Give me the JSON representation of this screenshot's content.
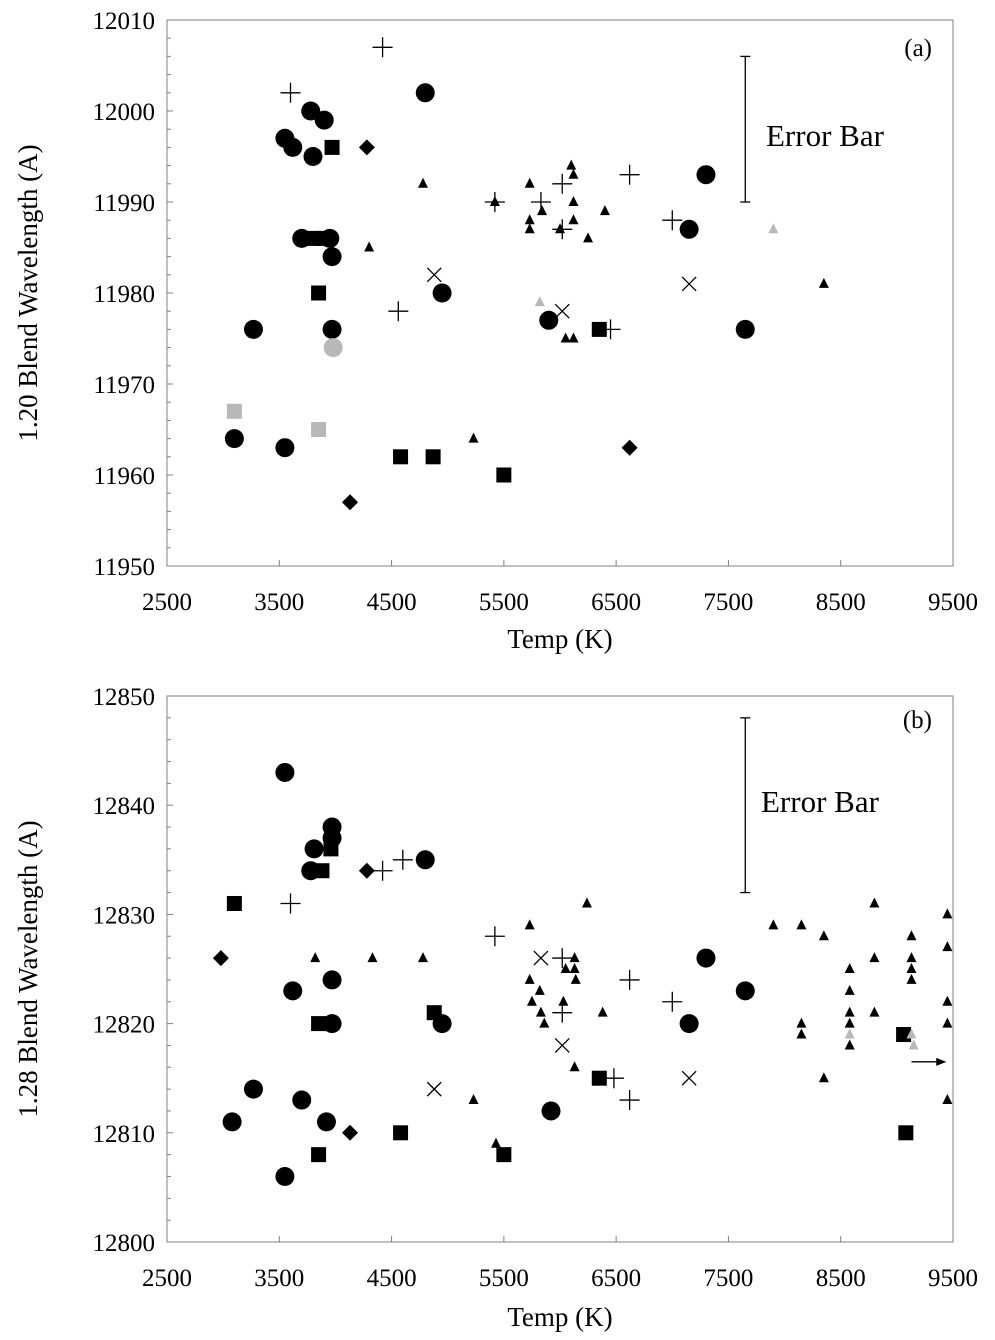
{
  "chart_data": [
    {
      "type": "scatter",
      "panel_label": "(a)",
      "xlabel": "Temp (K)",
      "ylabel": "1.20 Blend Wavelength (A)",
      "xlim": [
        2500,
        9500
      ],
      "ylim": [
        11950,
        12010
      ],
      "xticks": [
        2500,
        3500,
        4500,
        5500,
        6500,
        7500,
        8500,
        9500
      ],
      "yticks": [
        11950,
        11960,
        11970,
        11980,
        11990,
        12000,
        12010
      ],
      "grid": false,
      "error_bar": {
        "label": "Error Bar",
        "x": 7650,
        "y_low": 11990,
        "y_high": 12006
      },
      "series": [
        {
          "marker": "circle",
          "color": "#000000",
          "points": [
            [
              3100,
              11964
            ],
            [
              3270,
              11976
            ],
            [
              3550,
              11963
            ],
            [
              3550,
              11997
            ],
            [
              3620,
              11996
            ],
            [
              3700,
              11986
            ],
            [
              3780,
              12000
            ],
            [
              3800,
              11995
            ],
            [
              3900,
              11999
            ],
            [
              3950,
              11986
            ],
            [
              3970,
              11984
            ],
            [
              3970,
              11976
            ],
            [
              4800,
              12002
            ],
            [
              4950,
              11980
            ],
            [
              5900,
              11977
            ],
            [
              7150,
              11987
            ],
            [
              7300,
              11993
            ],
            [
              7650,
              11976
            ]
          ]
        },
        {
          "marker": "circle",
          "color": "#b8b8b8",
          "points": [
            [
              3980,
              11974
            ]
          ]
        },
        {
          "marker": "square",
          "color": "#000000",
          "points": [
            [
              3800,
              11986
            ],
            [
              3850,
              11980
            ],
            [
              3880,
              11986
            ],
            [
              3970,
              11996
            ],
            [
              4580,
              11962
            ],
            [
              4870,
              11962
            ],
            [
              5500,
              11960
            ],
            [
              6350,
              11976
            ]
          ]
        },
        {
          "marker": "square",
          "color": "#b8b8b8",
          "points": [
            [
              3100,
              11967
            ],
            [
              3850,
              11965
            ]
          ]
        },
        {
          "marker": "diamond",
          "color": "#000000",
          "points": [
            [
              4130,
              11957
            ],
            [
              4280,
              11996
            ],
            [
              6620,
              11963
            ]
          ]
        },
        {
          "marker": "triangle",
          "color": "#000000",
          "points": [
            [
              4300,
              11985
            ],
            [
              4780,
              11992
            ],
            [
              5230,
              11964
            ],
            [
              5420,
              11990
            ],
            [
              5730,
              11992
            ],
            [
              5730,
              11988
            ],
            [
              5730,
              11987
            ],
            [
              5840,
              11989
            ],
            [
              6000,
              11987
            ],
            [
              6050,
              11975
            ],
            [
              6100,
              11994
            ],
            [
              6120,
              11993
            ],
            [
              6120,
              11990
            ],
            [
              6120,
              11988
            ],
            [
              6120,
              11975
            ],
            [
              6250,
              11986
            ],
            [
              6400,
              11989
            ],
            [
              8350,
              11981
            ]
          ]
        },
        {
          "marker": "triangle",
          "color": "#b8b8b8",
          "points": [
            [
              5820,
              11979
            ],
            [
              7900,
              11987
            ]
          ]
        },
        {
          "marker": "plus",
          "color": "#000000",
          "points": [
            [
              3600,
              12002
            ],
            [
              4420,
              12007
            ],
            [
              4560,
              11978
            ],
            [
              5420,
              11990
            ],
            [
              5830,
              11990
            ],
            [
              6020,
              11992
            ],
            [
              6020,
              11987
            ],
            [
              6450,
              11976
            ],
            [
              6620,
              11993
            ],
            [
              7000,
              11988
            ]
          ]
        },
        {
          "marker": "cross",
          "color": "#000000",
          "points": [
            [
              4880,
              11982
            ],
            [
              6020,
              11978
            ],
            [
              7150,
              11981
            ]
          ]
        }
      ]
    },
    {
      "type": "scatter",
      "panel_label": "(b)",
      "xlabel": "Temp (K)",
      "ylabel": "1.28 Blend Wavelength (A)",
      "xlim": [
        2500,
        9500
      ],
      "ylim": [
        12800,
        12850
      ],
      "xticks": [
        2500,
        3500,
        4500,
        5500,
        6500,
        7500,
        8500,
        9500
      ],
      "yticks": [
        12800,
        12810,
        12820,
        12830,
        12840,
        12850
      ],
      "grid": false,
      "error_bar": {
        "label": "Error Bar",
        "x": 7650,
        "y_low": 12832,
        "y_high": 12848
      },
      "arrow": {
        "x_from": 9130,
        "x_to": 9440,
        "y": 12816.5
      },
      "series": [
        {
          "marker": "circle",
          "color": "#000000",
          "points": [
            [
              3080,
              12811
            ],
            [
              3270,
              12814
            ],
            [
              3550,
              12843
            ],
            [
              3550,
              12806
            ],
            [
              3620,
              12823
            ],
            [
              3700,
              12813
            ],
            [
              3780,
              12834
            ],
            [
              3810,
              12836
            ],
            [
              3920,
              12811
            ],
            [
              3970,
              12838
            ],
            [
              3970,
              12837
            ],
            [
              3970,
              12824
            ],
            [
              3970,
              12820
            ],
            [
              4800,
              12835
            ],
            [
              4950,
              12820
            ],
            [
              5920,
              12812
            ],
            [
              7150,
              12820
            ],
            [
              7300,
              12826
            ],
            [
              7650,
              12823
            ]
          ]
        },
        {
          "marker": "square",
          "color": "#000000",
          "points": [
            [
              3100,
              12831
            ],
            [
              3850,
              12820
            ],
            [
              3850,
              12808
            ],
            [
              3880,
              12834
            ],
            [
              3960,
              12836
            ],
            [
              4580,
              12810
            ],
            [
              4880,
              12821
            ],
            [
              5500,
              12808
            ],
            [
              6350,
              12815
            ],
            [
              9060,
              12819
            ],
            [
              9080,
              12810
            ]
          ]
        },
        {
          "marker": "diamond",
          "color": "#000000",
          "points": [
            [
              2980,
              12826
            ],
            [
              4130,
              12810
            ],
            [
              4280,
              12834
            ]
          ]
        },
        {
          "marker": "triangle",
          "color": "#000000",
          "points": [
            [
              3820,
              12826
            ],
            [
              4330,
              12826
            ],
            [
              4780,
              12826
            ],
            [
              5230,
              12813
            ],
            [
              5430,
              12809
            ],
            [
              5730,
              12829
            ],
            [
              5730,
              12824
            ],
            [
              5750,
              12822
            ],
            [
              5820,
              12823
            ],
            [
              5830,
              12821
            ],
            [
              5860,
              12820
            ],
            [
              6030,
              12822
            ],
            [
              6050,
              12825
            ],
            [
              6130,
              12826
            ],
            [
              6130,
              12825
            ],
            [
              6140,
              12824
            ],
            [
              6130,
              12816
            ],
            [
              6240,
              12831
            ],
            [
              6380,
              12821
            ],
            [
              7900,
              12829
            ],
            [
              8150,
              12829
            ],
            [
              8150,
              12820
            ],
            [
              8150,
              12819
            ],
            [
              8350,
              12828
            ],
            [
              8350,
              12815
            ],
            [
              8580,
              12825
            ],
            [
              8580,
              12823
            ],
            [
              8580,
              12821
            ],
            [
              8580,
              12820
            ],
            [
              8580,
              12818
            ],
            [
              8800,
              12831
            ],
            [
              8800,
              12826
            ],
            [
              8800,
              12821
            ],
            [
              9130,
              12828
            ],
            [
              9130,
              12826
            ],
            [
              9130,
              12825
            ],
            [
              9130,
              12824
            ],
            [
              9450,
              12830
            ],
            [
              9450,
              12827
            ],
            [
              9450,
              12822
            ],
            [
              9450,
              12820
            ],
            [
              9450,
              12813
            ]
          ]
        },
        {
          "marker": "triangle",
          "color": "#b8b8b8",
          "points": [
            [
              8580,
              12819
            ],
            [
              9130,
              12819
            ],
            [
              9150,
              12818
            ]
          ]
        },
        {
          "marker": "plus",
          "color": "#000000",
          "points": [
            [
              3600,
              12831
            ],
            [
              4420,
              12834
            ],
            [
              4600,
              12835
            ],
            [
              5420,
              12828
            ],
            [
              6020,
              12826
            ],
            [
              6020,
              12821
            ],
            [
              6480,
              12815
            ],
            [
              6620,
              12824
            ],
            [
              6620,
              12813
            ],
            [
              7000,
              12822
            ]
          ]
        },
        {
          "marker": "cross",
          "color": "#000000",
          "points": [
            [
              4880,
              12814
            ],
            [
              5830,
              12826
            ],
            [
              6020,
              12818
            ],
            [
              7150,
              12815
            ]
          ]
        }
      ]
    }
  ]
}
